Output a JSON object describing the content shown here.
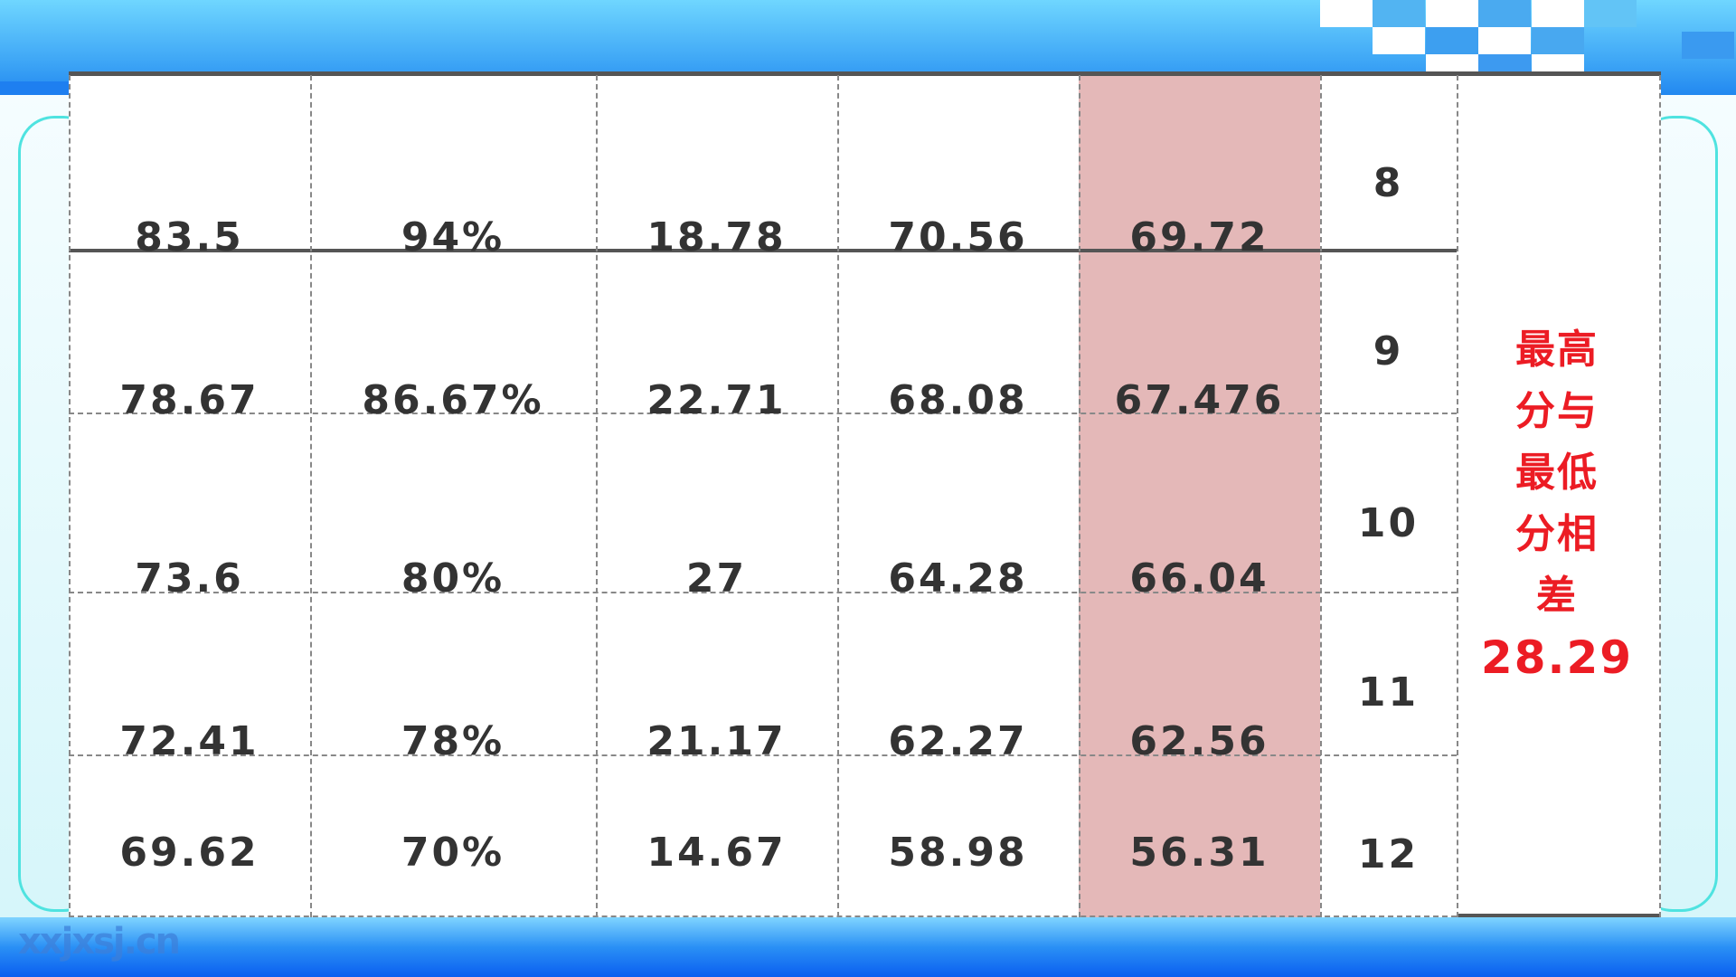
{
  "rows": [
    {
      "c1": "83.5",
      "c2": "94%",
      "c3": "18.78",
      "c4": "70.56",
      "c5": "69.72",
      "rank": "8"
    },
    {
      "c1": "78.67",
      "c2": "86.67%",
      "c3": "22.71",
      "c4": "68.08",
      "c5": "67.476",
      "rank": "9"
    },
    {
      "c1": "73.6",
      "c2": "80%",
      "c3": "27",
      "c4": "64.28",
      "c5": "66.04",
      "rank": "10"
    },
    {
      "c1": "72.41",
      "c2": "78%",
      "c3": "21.17",
      "c4": "62.27",
      "c5": "62.56",
      "rank": "11"
    },
    {
      "c1": "69.62",
      "c2": "70%",
      "c3": "14.67",
      "c4": "58.98",
      "c5": "56.31",
      "rank": "12"
    }
  ],
  "note_lines": [
    "最高",
    "分与",
    "最低",
    "分相",
    "差",
    "28.29"
  ],
  "watermark": "xxjxsj.cn",
  "colors": {
    "highlight_column": "#e4b8b8",
    "note_text": "#ec1c24",
    "header_blue": "#3aa2f5"
  }
}
